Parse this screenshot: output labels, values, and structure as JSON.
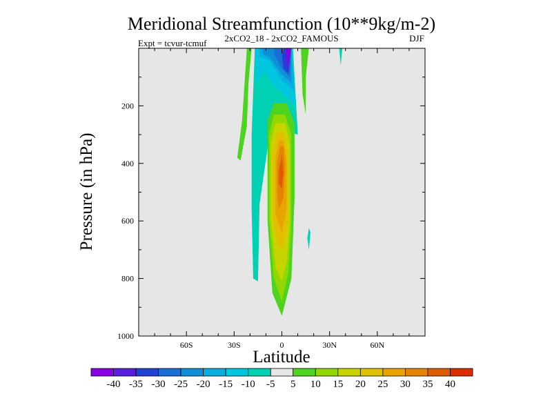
{
  "chart_data": {
    "type": "heatmap",
    "title": "Meridional Streamfunction (10**9kg/m-2)",
    "subtitle_left": "Expt = tcvur-tcmuf",
    "subtitle_center": "2xCO2_18 - 2xCO2_FAMOUS",
    "subtitle_right": "DJF",
    "xlabel": "Latitude",
    "ylabel": "Pressure (in hPa)",
    "xlim": [
      -90,
      90
    ],
    "ylim": [
      1000,
      0
    ],
    "x_ticks": [
      {
        "value": -60,
        "label": "60S"
      },
      {
        "value": -30,
        "label": "30S"
      },
      {
        "value": 0,
        "label": "0"
      },
      {
        "value": 30,
        "label": "30N"
      },
      {
        "value": 60,
        "label": "60N"
      }
    ],
    "y_ticks": [
      {
        "value": 200,
        "label": "200"
      },
      {
        "value": 400,
        "label": "400"
      },
      {
        "value": 600,
        "label": "600"
      },
      {
        "value": 800,
        "label": "800"
      },
      {
        "value": 1000,
        "label": "1000"
      }
    ],
    "background_color": "#e6e6e6",
    "colorbar": {
      "levels": [
        "-40",
        "-35",
        "-30",
        "-25",
        "-20",
        "-15",
        "-10",
        "-5",
        "5",
        "10",
        "15",
        "20",
        "25",
        "30",
        "35",
        "40"
      ],
      "colors": [
        "#8a00e6",
        "#5a1ee0",
        "#2242d6",
        "#1a6ed8",
        "#0f8fd8",
        "#08aee0",
        "#00c6e0",
        "#00d0b4",
        "#e6e6e6",
        "#4ed31e",
        "#92d800",
        "#c6d400",
        "#e0c000",
        "#e8a400",
        "#e48400",
        "#e05a00",
        "#dc2c00"
      ]
    },
    "contour_regions": [
      {
        "level": 5,
        "points": [
          [
            -22,
            0
          ],
          [
            -19,
            0
          ],
          [
            -21,
            120
          ],
          [
            -22,
            270
          ],
          [
            -26,
            390
          ],
          [
            -28,
            380
          ],
          [
            -25,
            250
          ]
        ]
      },
      {
        "level": -5,
        "points": [
          [
            -17,
            0
          ],
          [
            7,
            0
          ],
          [
            10,
            300
          ],
          [
            -7,
            270
          ],
          [
            -14,
            540
          ],
          [
            -15,
            810
          ],
          [
            -18,
            800
          ],
          [
            -19,
            560
          ],
          [
            -19,
            300
          ]
        ]
      },
      {
        "level": -10,
        "points": [
          [
            -17,
            0
          ],
          [
            6,
            0
          ],
          [
            9,
            200
          ],
          [
            -5,
            130
          ],
          [
            -11,
            80
          ],
          [
            -16,
            120
          ]
        ]
      },
      {
        "level": -15,
        "points": [
          [
            -14,
            0
          ],
          [
            6,
            0
          ],
          [
            8,
            150
          ],
          [
            0,
            110
          ],
          [
            -8,
            40
          ],
          [
            -14,
            30
          ]
        ]
      },
      {
        "level": -20,
        "points": [
          [
            -12,
            0
          ],
          [
            6,
            0
          ],
          [
            6,
            120
          ],
          [
            0,
            90
          ],
          [
            -8,
            30
          ],
          [
            -12,
            20
          ]
        ]
      },
      {
        "level": -25,
        "points": [
          [
            -5,
            0
          ],
          [
            6,
            0
          ],
          [
            5,
            100
          ],
          [
            0,
            70
          ],
          [
            -5,
            20
          ]
        ]
      },
      {
        "level": -30,
        "points": [
          [
            1,
            0
          ],
          [
            6,
            0
          ],
          [
            4,
            90
          ],
          [
            1,
            70
          ],
          [
            0,
            20
          ]
        ]
      },
      {
        "level": -35,
        "points": [
          [
            2,
            0
          ],
          [
            6,
            0
          ],
          [
            4,
            70
          ],
          [
            2,
            50
          ]
        ]
      },
      {
        "level": -40,
        "points": [
          [
            3,
            0
          ],
          [
            6,
            0
          ],
          [
            4,
            55
          ]
        ]
      },
      {
        "level": 5,
        "points": [
          [
            -9,
            250
          ],
          [
            -5,
            190
          ],
          [
            3,
            190
          ],
          [
            8,
            260
          ],
          [
            8,
            520
          ],
          [
            6,
            800
          ],
          [
            0,
            930
          ],
          [
            -6,
            850
          ],
          [
            -9,
            600
          ]
        ]
      },
      {
        "level": 10,
        "points": [
          [
            -8,
            300
          ],
          [
            -5,
            230
          ],
          [
            2,
            230
          ],
          [
            6,
            300
          ],
          [
            6,
            600
          ],
          [
            4,
            780
          ],
          [
            0,
            880
          ],
          [
            -5,
            800
          ],
          [
            -8,
            600
          ]
        ]
      },
      {
        "level": 15,
        "points": [
          [
            -7,
            330
          ],
          [
            -4,
            260
          ],
          [
            2,
            260
          ],
          [
            5,
            330
          ],
          [
            5,
            600
          ],
          [
            3,
            740
          ],
          [
            0,
            810
          ],
          [
            -4,
            760
          ],
          [
            -7,
            600
          ]
        ]
      },
      {
        "level": 20,
        "points": [
          [
            -6,
            360
          ],
          [
            -3,
            290
          ],
          [
            1,
            290
          ],
          [
            4,
            360
          ],
          [
            4,
            600
          ],
          [
            1,
            700
          ],
          [
            -3,
            680
          ],
          [
            -6,
            590
          ]
        ]
      },
      {
        "level": 25,
        "points": [
          [
            -4,
            380
          ],
          [
            -2,
            320
          ],
          [
            1,
            320
          ],
          [
            3,
            390
          ],
          [
            3,
            560
          ],
          [
            0,
            640
          ],
          [
            -4,
            580
          ]
        ]
      },
      {
        "level": 30,
        "points": [
          [
            -3,
            400
          ],
          [
            -1,
            340
          ],
          [
            1,
            340
          ],
          [
            2,
            410
          ],
          [
            1,
            520
          ],
          [
            -2,
            560
          ],
          [
            -3,
            500
          ]
        ]
      },
      {
        "level": 35,
        "points": [
          [
            -2,
            430
          ],
          [
            0,
            370
          ],
          [
            1,
            430
          ],
          [
            0,
            490
          ],
          [
            -2,
            470
          ]
        ]
      },
      {
        "level": 5,
        "points": [
          [
            12,
            0
          ],
          [
            17,
            0
          ],
          [
            15,
            100
          ],
          [
            15,
            230
          ],
          [
            13,
            160
          ]
        ]
      },
      {
        "level": 5,
        "points": [
          [
            13,
            0
          ],
          [
            15,
            0
          ],
          [
            14,
            80
          ]
        ]
      },
      {
        "level": -5,
        "points": [
          [
            17,
            625
          ],
          [
            18,
            640
          ],
          [
            17,
            700
          ],
          [
            16,
            660
          ]
        ]
      },
      {
        "level": -5,
        "points": [
          [
            36,
            0
          ],
          [
            38,
            0
          ],
          [
            37,
            60
          ]
        ]
      }
    ]
  }
}
